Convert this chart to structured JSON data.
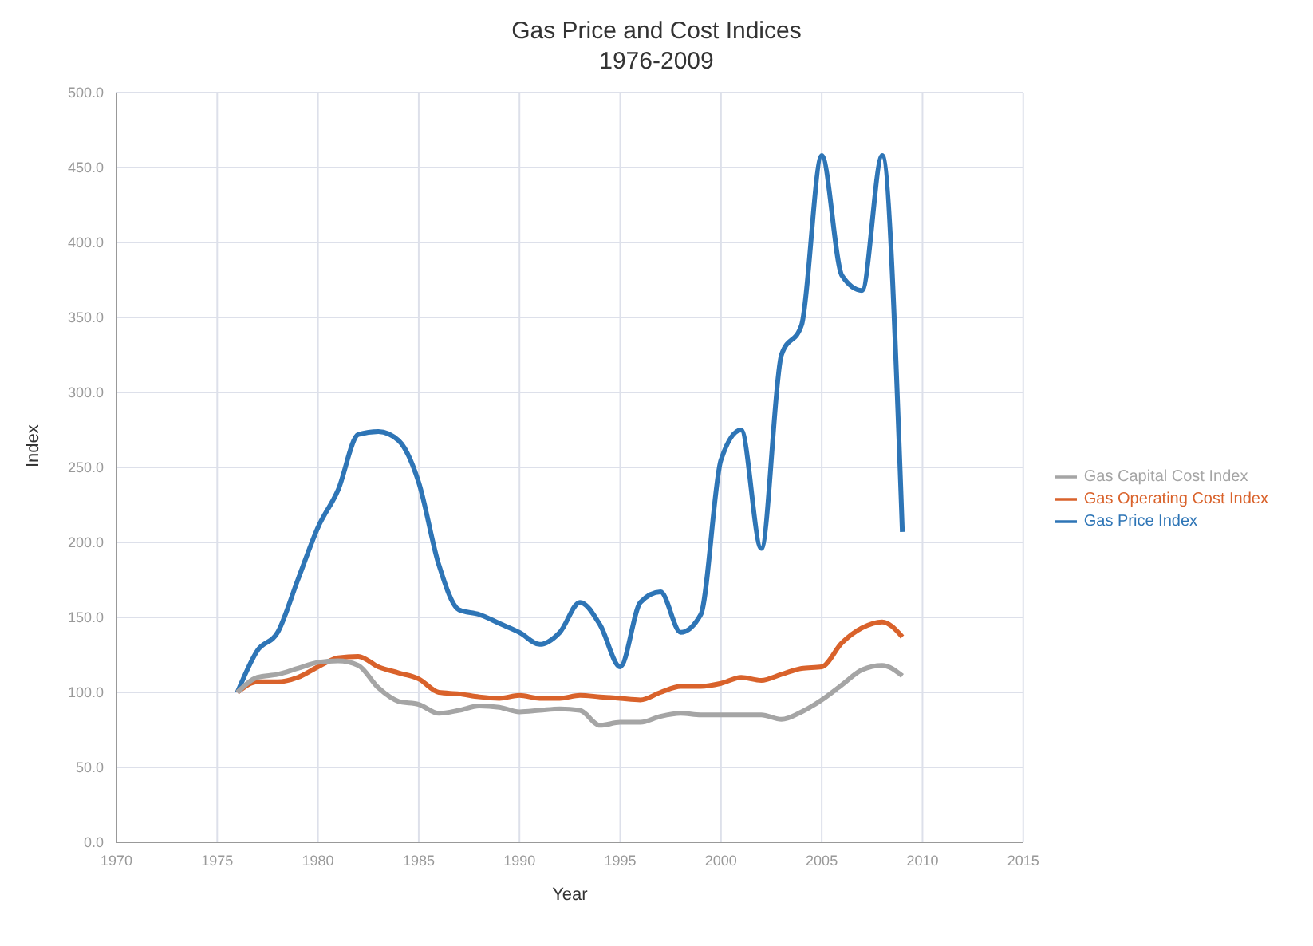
{
  "chart_data": {
    "type": "line",
    "title": "Gas Price and Cost Indices",
    "subtitle": "1976-2009",
    "xlabel": "Year",
    "ylabel": "Index",
    "x": [
      1976,
      1977,
      1978,
      1979,
      1980,
      1981,
      1982,
      1983,
      1984,
      1985,
      1986,
      1987,
      1988,
      1989,
      1990,
      1991,
      1992,
      1993,
      1994,
      1995,
      1996,
      1997,
      1998,
      1999,
      2000,
      2001,
      2002,
      2003,
      2004,
      2005,
      2006,
      2007,
      2008,
      2009
    ],
    "series": [
      {
        "name": "Gas Price Index",
        "color": "#2e75b6",
        "values": [
          100,
          128,
          140,
          175,
          210,
          235,
          272,
          274,
          268,
          240,
          185,
          155,
          152,
          146,
          140,
          132,
          140,
          160,
          145,
          117,
          160,
          167,
          140,
          152,
          255,
          275,
          196,
          325,
          345,
          458,
          378,
          368,
          458,
          207
        ]
      },
      {
        "name": "Gas Operating Cost Index",
        "color": "#d9622b",
        "values": [
          100,
          107,
          107,
          110,
          117,
          123,
          124,
          117,
          113,
          109,
          100,
          99,
          97,
          96,
          98,
          96,
          96,
          98,
          97,
          96,
          95,
          100,
          104,
          104,
          106,
          110,
          108,
          112,
          116,
          117,
          133,
          143,
          147,
          137
        ]
      },
      {
        "name": "Gas Capital Cost Index",
        "color": "#a5a5a5",
        "values": [
          100,
          110,
          112,
          116,
          120,
          121,
          118,
          103,
          94,
          92,
          86,
          88,
          91,
          90,
          87,
          88,
          89,
          88,
          78,
          80,
          80,
          84,
          86,
          85,
          85,
          85,
          85,
          82,
          87,
          95,
          105,
          115,
          118,
          111
        ]
      }
    ],
    "xlim": [
      1970,
      2015
    ],
    "xticks": [
      1970,
      1975,
      1980,
      1985,
      1990,
      1995,
      2000,
      2005,
      2010,
      2015
    ],
    "ylim": [
      0,
      500
    ],
    "yticks": [
      {
        "value": 0,
        "label": "0.0"
      },
      {
        "value": 50,
        "label": "50.0"
      },
      {
        "value": 100,
        "label": "100.0"
      },
      {
        "value": 150,
        "label": "150.0"
      },
      {
        "value": 200,
        "label": "200.0"
      },
      {
        "value": 250,
        "label": "250.0"
      },
      {
        "value": 300,
        "label": "300.0"
      },
      {
        "value": 350,
        "label": "350.0"
      },
      {
        "value": 400,
        "label": "400.0"
      },
      {
        "value": 450,
        "label": "450.0"
      },
      {
        "value": 500,
        "label": "500.0"
      }
    ],
    "grid": true,
    "legend": "right",
    "marker": "none",
    "line_style": "solid"
  }
}
